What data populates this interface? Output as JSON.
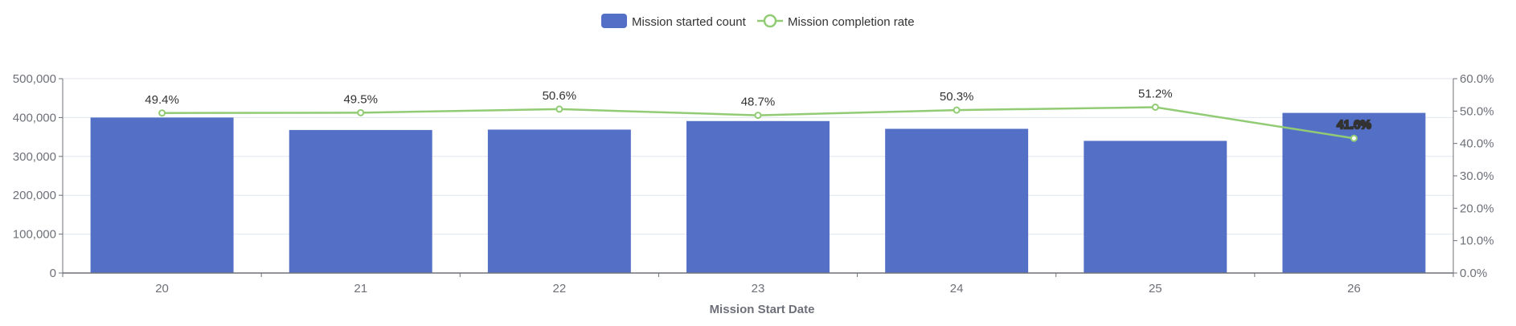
{
  "chart_data": {
    "type": "bar",
    "xlabel": "Mission Start Date",
    "categories": [
      "20",
      "21",
      "22",
      "23",
      "24",
      "25",
      "26"
    ],
    "series": [
      {
        "name": "Mission started count",
        "type": "bar",
        "axis": "left",
        "color": "#5470c6",
        "values": [
          400000,
          368000,
          369000,
          391000,
          371000,
          340000,
          412000
        ]
      },
      {
        "name": "Mission completion rate",
        "type": "line",
        "axis": "right",
        "color": "#91cc75",
        "values": [
          49.4,
          49.5,
          50.6,
          48.7,
          50.3,
          51.2,
          41.6
        ],
        "labels": [
          "49.4%",
          "49.5%",
          "50.6%",
          "48.7%",
          "50.3%",
          "51.2%",
          "41.6%"
        ]
      }
    ],
    "y_left": {
      "ylim": [
        0,
        500000
      ],
      "ticks": [
        "0",
        "100,000",
        "200,000",
        "300,000",
        "400,000",
        "500,000"
      ]
    },
    "y_right": {
      "ylim": [
        0,
        60
      ],
      "ticks": [
        "0.0%",
        "10.0%",
        "20.0%",
        "30.0%",
        "40.0%",
        "50.0%",
        "60.0%"
      ]
    },
    "grid": true,
    "legend_position": "top-center"
  }
}
